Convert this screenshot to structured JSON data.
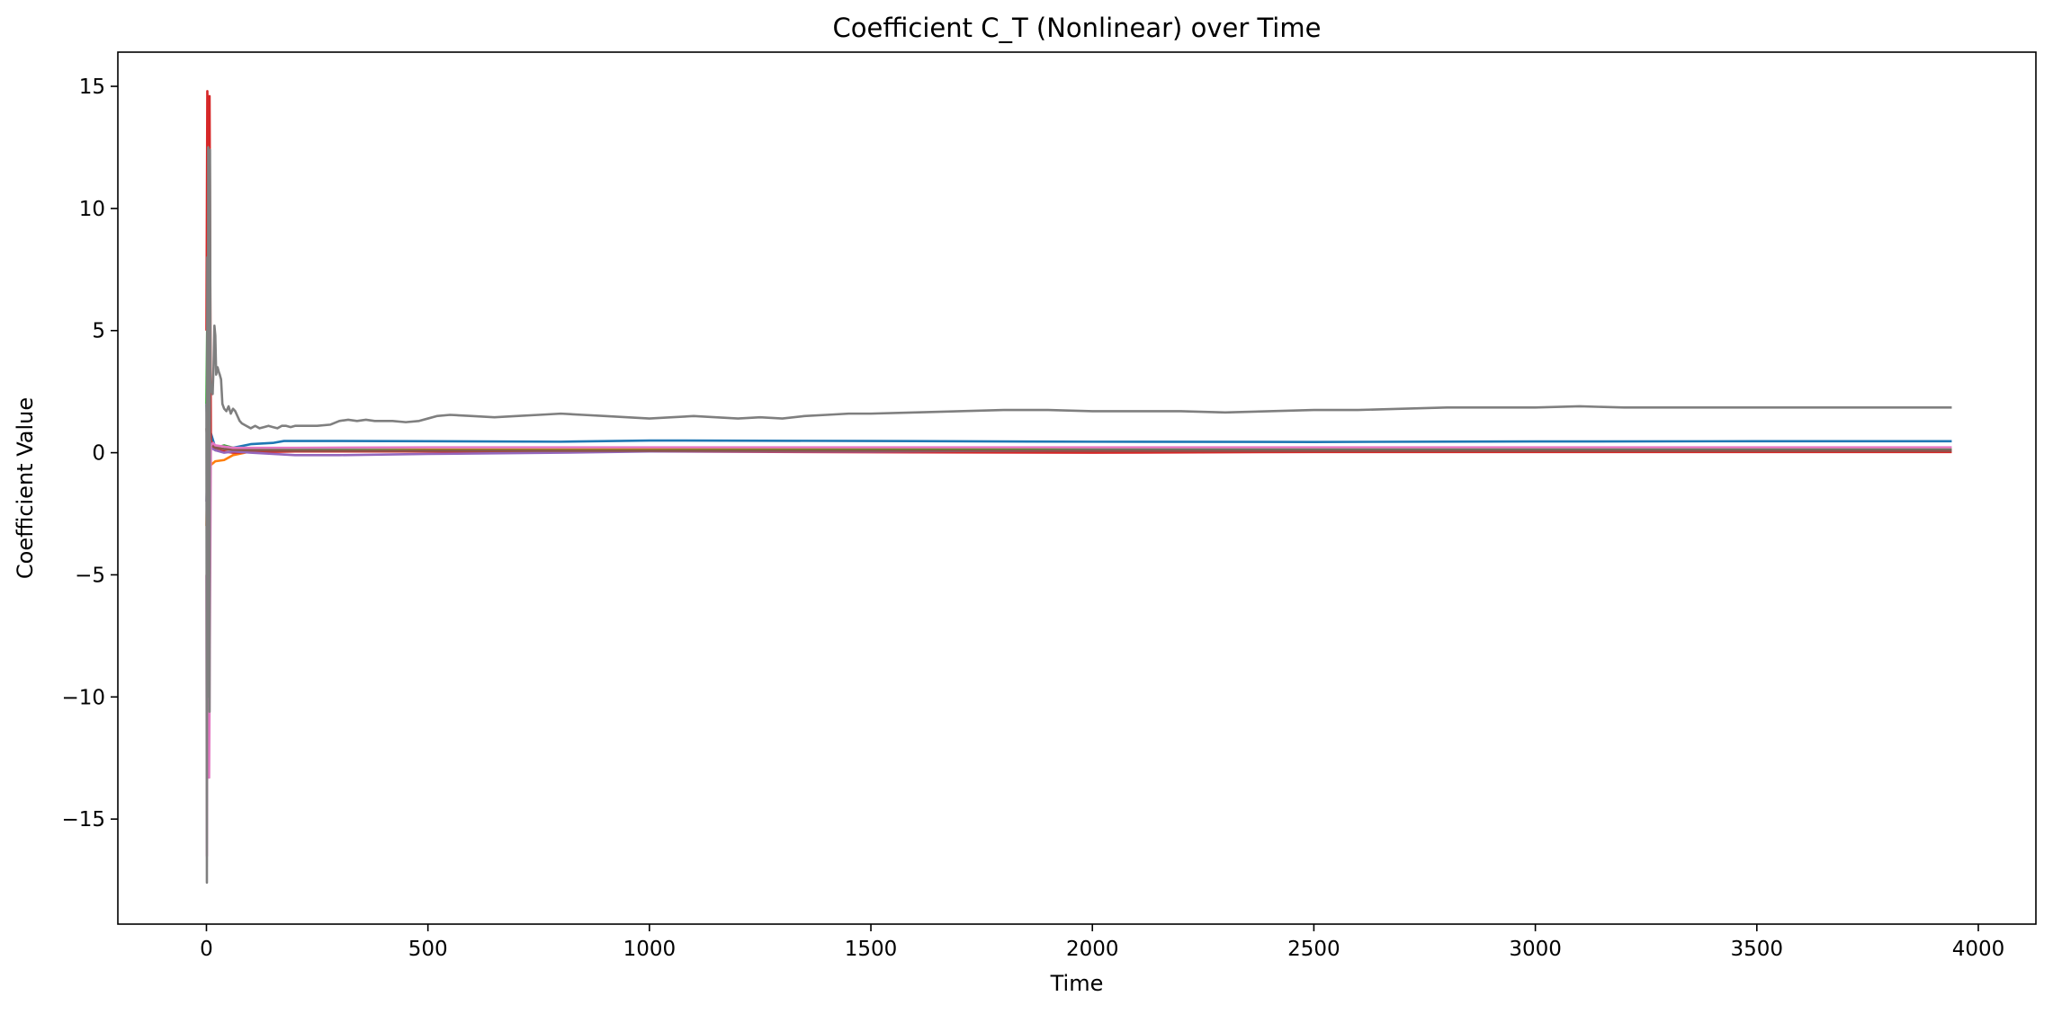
{
  "chart_data": {
    "type": "line",
    "title": "Coefficient C_T (Nonlinear) over Time",
    "xlabel": "Time",
    "ylabel": "Coefficient Value",
    "xlim": [
      -200,
      4130
    ],
    "ylim": [
      -19.3,
      16.4
    ],
    "xticks": [
      0,
      500,
      1000,
      1500,
      2000,
      2500,
      3000,
      3500,
      4000
    ],
    "xtick_labels": [
      "0",
      "500",
      "1000",
      "1500",
      "2000",
      "2500",
      "3000",
      "3500",
      "4000"
    ],
    "yticks": [
      -15,
      -10,
      -5,
      0,
      5,
      10,
      15
    ],
    "ytick_labels": [
      "−15",
      "−10",
      "−5",
      "0",
      "5",
      "10",
      "15"
    ],
    "grid": false,
    "legend": "none",
    "series": [
      {
        "color": "#1f77b4",
        "x": [
          0,
          5,
          10,
          20,
          40,
          60,
          100,
          150,
          175,
          200,
          300,
          500,
          800,
          1000,
          1500,
          2000,
          2500,
          3000,
          3500,
          3940
        ],
        "y": [
          2,
          -1,
          0.8,
          0.2,
          0.15,
          0.2,
          0.35,
          0.4,
          0.48,
          0.48,
          0.48,
          0.47,
          0.45,
          0.5,
          0.48,
          0.45,
          0.44,
          0.46,
          0.47,
          0.47
        ]
      },
      {
        "color": "#ff7f0e",
        "x": [
          0,
          5,
          10,
          20,
          40,
          60,
          100,
          200,
          500,
          1000,
          2000,
          3000,
          3940
        ],
        "y": [
          -3,
          2,
          -0.5,
          -0.35,
          -0.3,
          -0.1,
          0.05,
          0.1,
          0.12,
          0.14,
          0.15,
          0.15,
          0.15
        ]
      },
      {
        "color": "#2ca02c",
        "x": [
          0,
          3,
          6,
          10,
          20,
          40,
          60,
          100,
          200,
          500,
          1000,
          2000,
          3000,
          3940
        ],
        "y": [
          2,
          7.8,
          -2,
          0.5,
          0.2,
          0.3,
          0.2,
          0.15,
          0.12,
          0.1,
          0.1,
          0.12,
          0.12,
          0.12
        ]
      },
      {
        "color": "#d62728",
        "x": [
          0,
          2,
          4,
          7,
          10,
          15,
          20,
          40,
          60,
          100,
          200,
          500,
          1000,
          1500,
          2000,
          2500,
          3000,
          3940
        ],
        "y": [
          5,
          14.8,
          12.6,
          14.6,
          0.5,
          0.3,
          0.1,
          0.05,
          0.0,
          0.02,
          0.05,
          0.05,
          0.05,
          0.02,
          0.0,
          0.03,
          0.03,
          0.03
        ]
      },
      {
        "color": "#9467bd",
        "x": [
          0,
          5,
          10,
          20,
          40,
          60,
          100,
          200,
          300,
          500,
          800,
          1000,
          1500,
          2000,
          2500,
          3000,
          3940
        ],
        "y": [
          -2,
          1,
          0.2,
          0.1,
          0.0,
          0.05,
          0.0,
          -0.1,
          -0.1,
          -0.05,
          0.0,
          0.05,
          0.05,
          0.1,
          0.1,
          0.1,
          0.1
        ]
      },
      {
        "color": "#8c564b",
        "x": [
          0,
          5,
          10,
          20,
          40,
          60,
          100,
          200,
          500,
          1000,
          2000,
          3000,
          3940
        ],
        "y": [
          1,
          -0.5,
          0.3,
          0.2,
          0.15,
          0.12,
          0.1,
          0.08,
          0.08,
          0.08,
          0.08,
          0.08,
          0.08
        ]
      },
      {
        "color": "#e377c2",
        "x": [
          0,
          1,
          3,
          6,
          10,
          15,
          20,
          40,
          60,
          100,
          200,
          500,
          1000,
          2000,
          3000,
          3940
        ],
        "y": [
          -5,
          -16.5,
          0.3,
          -13.3,
          0.3,
          0.4,
          0.3,
          0.25,
          0.2,
          0.2,
          0.2,
          0.22,
          0.22,
          0.22,
          0.22,
          0.22
        ]
      },
      {
        "color": "#7f7f7f",
        "x": [
          0,
          1,
          2,
          3,
          4,
          5,
          6,
          7,
          8,
          9,
          10,
          12,
          14,
          16,
          18,
          20,
          22,
          25,
          28,
          30,
          33,
          36,
          40,
          45,
          50,
          55,
          60,
          65,
          70,
          75,
          80,
          90,
          100,
          110,
          120,
          130,
          140,
          150,
          160,
          170,
          180,
          190,
          200,
          220,
          250,
          280,
          300,
          320,
          340,
          360,
          380,
          400,
          420,
          450,
          480,
          500,
          520,
          550,
          600,
          650,
          700,
          750,
          800,
          850,
          900,
          950,
          1000,
          1050,
          1100,
          1150,
          1200,
          1250,
          1300,
          1350,
          1400,
          1450,
          1500,
          1600,
          1700,
          1800,
          1900,
          2000,
          2100,
          2200,
          2300,
          2400,
          2500,
          2600,
          2700,
          2800,
          2900,
          3000,
          3100,
          3200,
          3300,
          3400,
          3500,
          3600,
          3700,
          3800,
          3900,
          3940
        ],
        "y": [
          2,
          -17.6,
          8,
          -10,
          12.5,
          -8,
          10,
          -10.6,
          12.4,
          3,
          2.5,
          2.6,
          2.4,
          3.5,
          5.2,
          4.8,
          3.2,
          3.5,
          3.3,
          3.2,
          3.0,
          2.0,
          1.8,
          1.7,
          1.9,
          1.6,
          1.8,
          1.7,
          1.5,
          1.3,
          1.2,
          1.1,
          1.0,
          1.1,
          1.0,
          1.05,
          1.1,
          1.05,
          1.0,
          1.1,
          1.1,
          1.05,
          1.1,
          1.1,
          1.1,
          1.15,
          1.3,
          1.35,
          1.3,
          1.35,
          1.3,
          1.3,
          1.3,
          1.25,
          1.3,
          1.4,
          1.5,
          1.55,
          1.5,
          1.45,
          1.5,
          1.55,
          1.6,
          1.55,
          1.5,
          1.45,
          1.4,
          1.45,
          1.5,
          1.45,
          1.4,
          1.45,
          1.4,
          1.5,
          1.55,
          1.6,
          1.6,
          1.65,
          1.7,
          1.75,
          1.75,
          1.7,
          1.7,
          1.7,
          1.65,
          1.7,
          1.75,
          1.75,
          1.8,
          1.85,
          1.85,
          1.85,
          1.9,
          1.85,
          1.85,
          1.85,
          1.85,
          1.85,
          1.85,
          1.85,
          1.85,
          1.85
        ]
      }
    ]
  }
}
